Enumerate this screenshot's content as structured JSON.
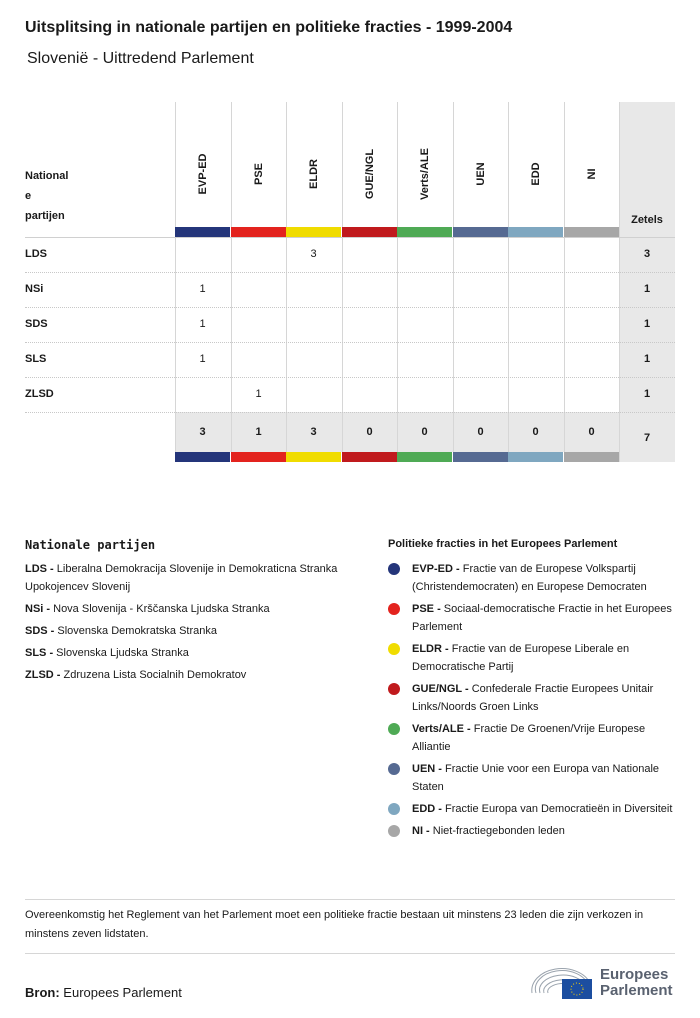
{
  "title": "Uitsplitsing in nationale partijen en politieke fracties - 1999-2004",
  "subtitle": "Slovenië - Uittredend Parlement",
  "table": {
    "party_header": [
      "National",
      "e",
      "partijen"
    ],
    "seats_header": "Zetels",
    "groups": [
      {
        "name": "EVP-ED",
        "color": "#24357a"
      },
      {
        "name": "PSE",
        "color": "#e3231e"
      },
      {
        "name": "ELDR",
        "color": "#f0dc00"
      },
      {
        "name": "GUE/NGL",
        "color": "#c01a1d"
      },
      {
        "name": "Verts/ALE",
        "color": "#4faa55"
      },
      {
        "name": "UEN",
        "color": "#566a92"
      },
      {
        "name": "EDD",
        "color": "#7fa7c0"
      },
      {
        "name": "NI",
        "color": "#a7a7a7"
      }
    ],
    "rows": [
      {
        "party": "LDS",
        "values": [
          "",
          "",
          "3",
          "",
          "",
          "",
          "",
          ""
        ],
        "total": "3"
      },
      {
        "party": "NSi",
        "values": [
          "1",
          "",
          "",
          "",
          "",
          "",
          "",
          ""
        ],
        "total": "1"
      },
      {
        "party": "SDS",
        "values": [
          "1",
          "",
          "",
          "",
          "",
          "",
          "",
          ""
        ],
        "total": "1"
      },
      {
        "party": "SLS",
        "values": [
          "1",
          "",
          "",
          "",
          "",
          "",
          "",
          ""
        ],
        "total": "1"
      },
      {
        "party": "ZLSD",
        "values": [
          "",
          "1",
          "",
          "",
          "",
          "",
          "",
          ""
        ],
        "total": "1"
      }
    ],
    "totals": [
      "3",
      "1",
      "3",
      "0",
      "0",
      "0",
      "0",
      "0"
    ],
    "grand_total": "7"
  },
  "legend_parties": {
    "title": "Nationale partijen",
    "items": [
      {
        "abbr": "LDS",
        "name": "Liberalna Demokracija Slovenije in Demokraticna Stranka Upokojencev Slovenij"
      },
      {
        "abbr": "NSi",
        "name": "Nova Slovenija - Krščanska Ljudska Stranka"
      },
      {
        "abbr": "SDS",
        "name": "Slovenska Demokratska Stranka"
      },
      {
        "abbr": "SLS",
        "name": "Slovenska Ljudska Stranka"
      },
      {
        "abbr": "ZLSD",
        "name": "Zdruzena Lista Socialnih Demokratov"
      }
    ]
  },
  "legend_groups": {
    "title": "Politieke fracties in het Europees Parlement",
    "items": [
      {
        "abbr": "EVP-ED",
        "name": "Fractie van de Europese Volkspartij (Christendemocraten) en Europese Democraten"
      },
      {
        "abbr": "PSE",
        "name": "Sociaal-democratische Fractie in het Europees Parlement"
      },
      {
        "abbr": "ELDR",
        "name": "Fractie van de Europese Liberale en Democratische Partij"
      },
      {
        "abbr": "GUE/NGL",
        "name": "Confederale Fractie Europees Unitair Links/Noords Groen Links"
      },
      {
        "abbr": "Verts/ALE",
        "name": "Fractie De Groenen/Vrije Europese Alliantie"
      },
      {
        "abbr": "UEN",
        "name": "Fractie Unie voor een Europa van Nationale Staten"
      },
      {
        "abbr": "EDD",
        "name": "Fractie Europa van Democratieën in Diversiteit"
      },
      {
        "abbr": "NI",
        "name": "Niet-fractiegebonden leden"
      }
    ]
  },
  "note": "Overeenkomstig het Reglement van het Parlement moet een politieke fractie bestaan uit minstens 23 leden die zijn verkozen in minstens zeven lidstaten.",
  "source": {
    "label": "Bron:",
    "value": "Europees Parlement"
  },
  "logo": {
    "line1": "Europees",
    "line2": "Parlement"
  }
}
